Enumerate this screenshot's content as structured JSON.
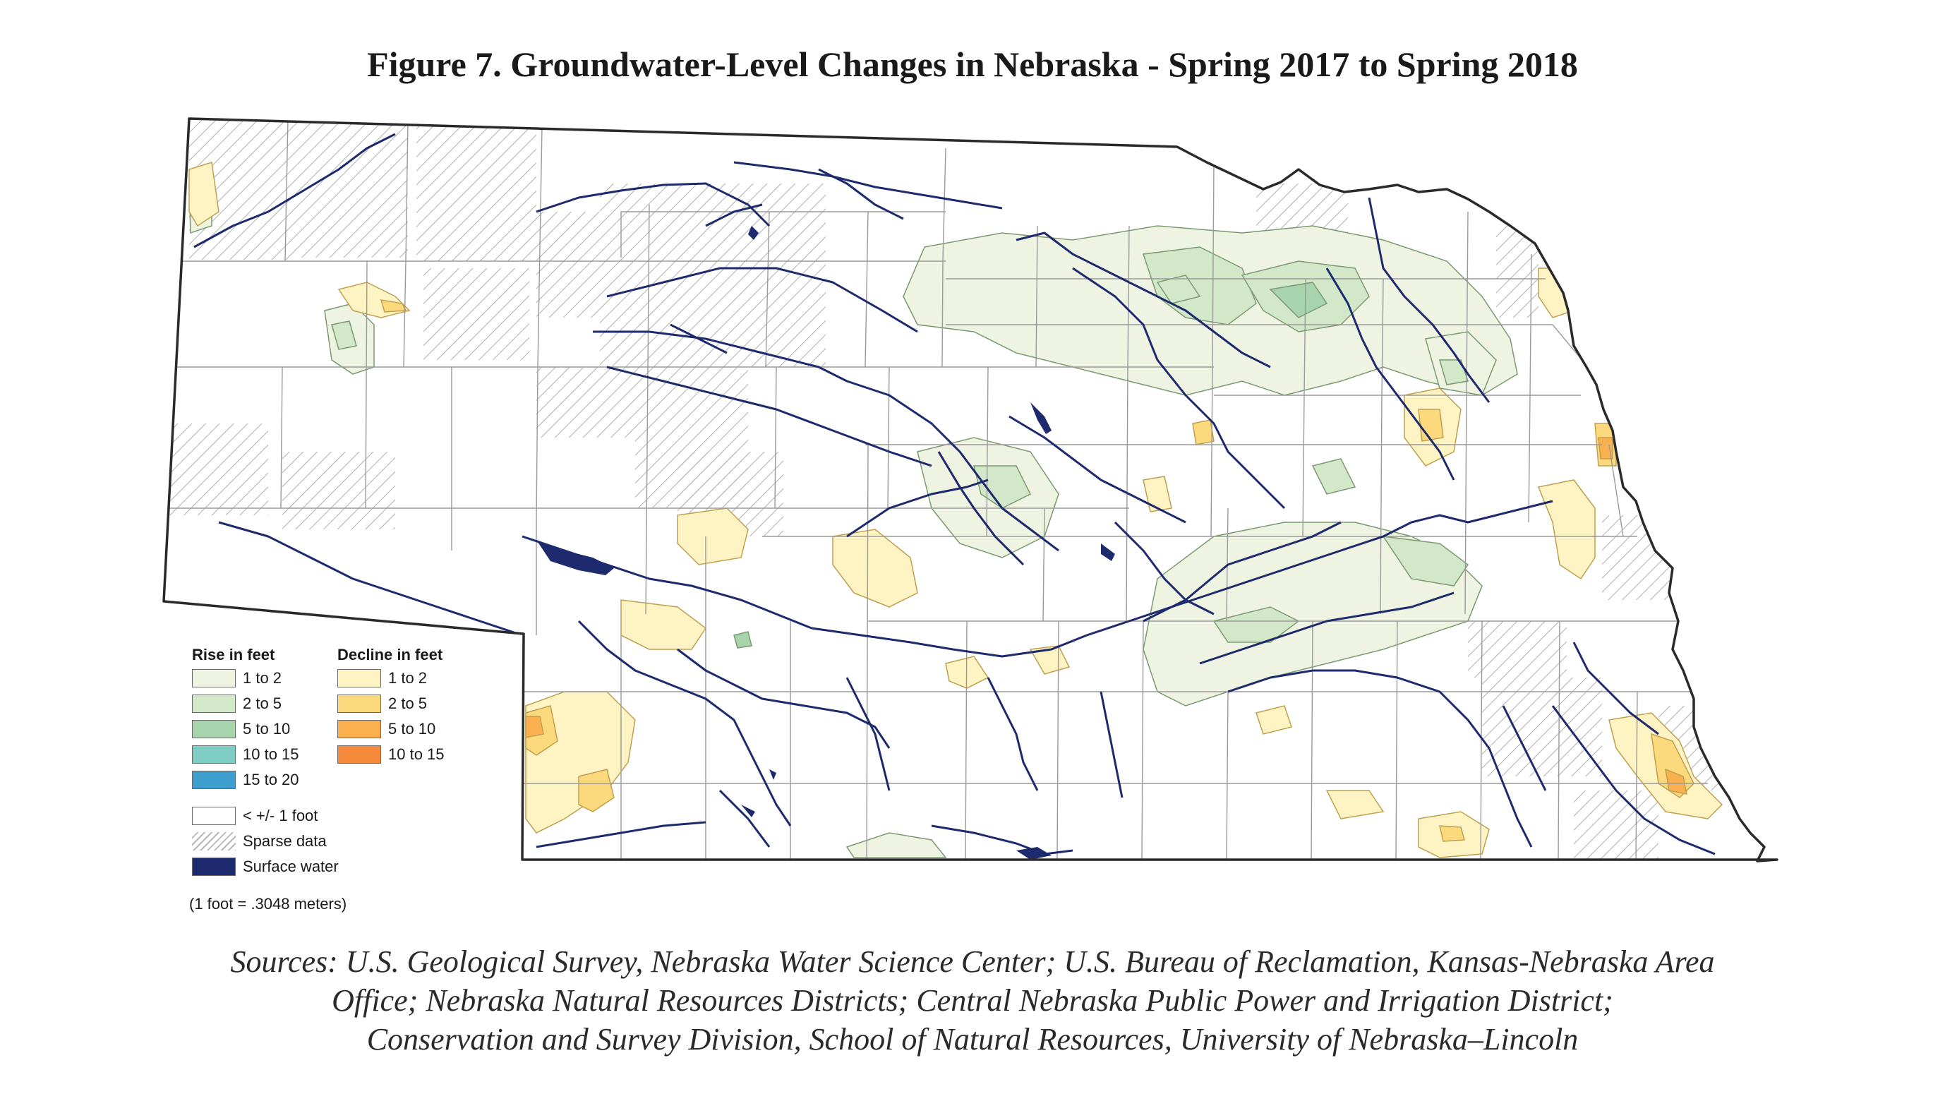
{
  "title": "Figure 7.  Groundwater-Level Changes in Nebraska - Spring 2017 to Spring 2018",
  "legend": {
    "rise_heading": "Rise in feet",
    "decline_heading": "Decline in feet",
    "rise": [
      {
        "label": "1 to 2",
        "color": "#eef3e2"
      },
      {
        "label": "2 to 5",
        "color": "#d3e8c9"
      },
      {
        "label": "5 to 10",
        "color": "#a8d4ad"
      },
      {
        "label": "10 to 15",
        "color": "#7ecdc4"
      },
      {
        "label": "15 to 20",
        "color": "#3e9ecd"
      }
    ],
    "decline": [
      {
        "label": "1 to 2",
        "color": "#fdf3c3"
      },
      {
        "label": "2 to 5",
        "color": "#fbd97c"
      },
      {
        "label": "5 to 10",
        "color": "#fbb050"
      },
      {
        "label": "10 to 15",
        "color": "#f68a3c"
      }
    ],
    "other": [
      {
        "label": "< +/- 1 foot",
        "color": "#ffffff"
      },
      {
        "label": "Sparse data",
        "color": "#b8b8b8"
      },
      {
        "label": "Surface water",
        "color": "#1e2a6e"
      }
    ],
    "conversion": "(1 foot = .3048 meters)"
  },
  "sources": [
    "Sources: U.S. Geological Survey, Nebraska Water Science Center; U.S. Bureau of Reclamation, Kansas-Nebraska Area",
    "Office; Nebraska Natural Resources Districts; Central Nebraska Public Power and Irrigation District;",
    "Conservation and Survey Division, School of Natural Resources, University of Nebraska–Lincoln"
  ],
  "colors": {
    "county_line": "#9a9a9a",
    "state_border": "#2a2a2a",
    "river": "#1e2a6e"
  }
}
